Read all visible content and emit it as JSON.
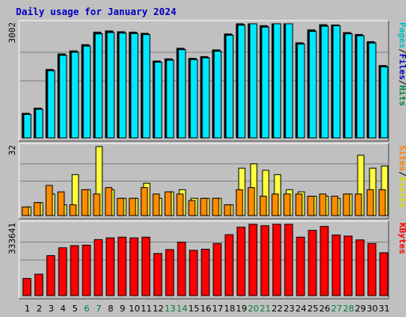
{
  "chart_data": {
    "type": "bar",
    "title": "Daily usage for January 2024",
    "days": [
      {
        "label": "1",
        "weekend": false
      },
      {
        "label": "2",
        "weekend": false
      },
      {
        "label": "3",
        "weekend": false
      },
      {
        "label": "4",
        "weekend": false
      },
      {
        "label": "5",
        "weekend": false
      },
      {
        "label": "6",
        "weekend": true
      },
      {
        "label": "7",
        "weekend": true
      },
      {
        "label": "8",
        "weekend": false
      },
      {
        "label": "9",
        "weekend": false
      },
      {
        "label": "10",
        "weekend": false
      },
      {
        "label": "11",
        "weekend": false
      },
      {
        "label": "12",
        "weekend": false
      },
      {
        "label": "13",
        "weekend": true
      },
      {
        "label": "14",
        "weekend": true
      },
      {
        "label": "15",
        "weekend": false
      },
      {
        "label": "16",
        "weekend": false
      },
      {
        "label": "17",
        "weekend": false
      },
      {
        "label": "18",
        "weekend": false
      },
      {
        "label": "19",
        "weekend": false
      },
      {
        "label": "20",
        "weekend": true
      },
      {
        "label": "21",
        "weekend": true
      },
      {
        "label": "22",
        "weekend": false
      },
      {
        "label": "23",
        "weekend": false
      },
      {
        "label": "24",
        "weekend": false
      },
      {
        "label": "25",
        "weekend": false
      },
      {
        "label": "26",
        "weekend": false
      },
      {
        "label": "27",
        "weekend": true
      },
      {
        "label": "28",
        "weekend": true
      },
      {
        "label": "29",
        "weekend": false
      },
      {
        "label": "30",
        "weekend": false
      },
      {
        "label": "31",
        "weekend": false
      }
    ],
    "panels": [
      {
        "id": "pages-files-hits",
        "axis_max_label": "3002",
        "axis_max": 3002,
        "gridlines": [
          0.5,
          0.75
        ],
        "legend": [
          {
            "text": "Pages",
            "color": "#00c0c0"
          },
          {
            "text": "/",
            "color": "#000000"
          },
          {
            "text": "Files",
            "color": "#0000c0"
          },
          {
            "text": "/",
            "color": "#000000"
          },
          {
            "text": "Hits",
            "color": "#008040"
          }
        ],
        "series": [
          {
            "key": "hits",
            "name": "Hits",
            "color": "#0b6b7c",
            "values": [
              647,
              784,
              1801,
              2210,
              2290,
              2454,
              2782,
              2815,
              2793,
              2782,
              2751,
              2023,
              2080,
              2358,
              2094,
              2139,
              2314,
              2735,
              3002,
              3002,
              2953,
              3002,
              3002,
              2502,
              2842,
              2981,
              2971,
              2772,
              2721,
              2531,
              1904
            ]
          },
          {
            "key": "files",
            "name": "Files",
            "color": "#0000c0",
            "values": [
              627,
              761,
              1778,
              2183,
              2265,
              2428,
              2753,
              2789,
              2771,
              2760,
              2730,
              2001,
              2057,
              2333,
              2070,
              2116,
              2293,
              2713,
              2981,
              3002,
              2931,
              3002,
              3002,
              2480,
              2815,
              2953,
              2961,
              2750,
              2698,
              2507,
              1881
            ]
          },
          {
            "key": "pages",
            "name": "Pages",
            "color": "#00e8ff",
            "values": [
              616,
              752,
              1766,
              2171,
              2253,
              2414,
              2735,
              2771,
              2758,
              2745,
              2718,
              1990,
              2045,
              2321,
              2058,
              2106,
              2279,
              2699,
              2965,
              3002,
              2915,
              3002,
              3002,
              2468,
              2801,
              2938,
              2949,
              2738,
              2686,
              2496,
              1866
            ]
          }
        ]
      },
      {
        "id": "sites-visits",
        "axis_max_label": "32",
        "axis_max": 32,
        "gridlines": [
          0.5,
          0.75
        ],
        "legend": [
          {
            "text": "Sites",
            "color": "#ff8000"
          },
          {
            "text": "/",
            "color": "#000000"
          },
          {
            "text": "Visits",
            "color": "#e0e000"
          }
        ],
        "series": [
          {
            "key": "visits",
            "name": "Visits",
            "color": "#ffff40",
            "values": [
              4,
              6,
              10,
              5,
              19,
              12,
              32,
              12,
              8,
              8,
              15,
              8,
              11,
              12,
              8,
              8,
              8,
              5,
              22,
              24,
              21,
              19,
              12,
              11,
              9,
              9,
              8,
              10,
              28,
              22,
              23
            ]
          },
          {
            "key": "sites",
            "name": "Sites",
            "color": "#ff8c00",
            "values": [
              4,
              6,
              14,
              11,
              5,
              12,
              10,
              13,
              8,
              8,
              13,
              10,
              11,
              10,
              7,
              8,
              8,
              5,
              12,
              13,
              9,
              10,
              10,
              10,
              9,
              10,
              9,
              10,
              10,
              12,
              12
            ]
          }
        ]
      },
      {
        "id": "kbytes",
        "axis_max_label": "333641",
        "axis_max": 333641,
        "gridlines": [
          0.5,
          0.75
        ],
        "legend": [
          {
            "text": "KBytes",
            "color": "#ff0000"
          }
        ],
        "series": [
          {
            "key": "kbytes",
            "name": "KBytes",
            "color": "#ff0000",
            "values": [
              80116,
              100145,
              186937,
              223652,
              233666,
              236004,
              262038,
              270048,
              273386,
              270048,
              273386,
              196951,
              215309,
              250354,
              211971,
              216978,
              243678,
              285069,
              320103,
              333641,
              326973,
              333641,
              333641,
              273386,
              305416,
              323437,
              283400,
              278400,
              260361,
              243678,
              200290
            ]
          }
        ]
      }
    ],
    "weekday_label_color": "#000000",
    "weekend_label_color": "#008040"
  }
}
